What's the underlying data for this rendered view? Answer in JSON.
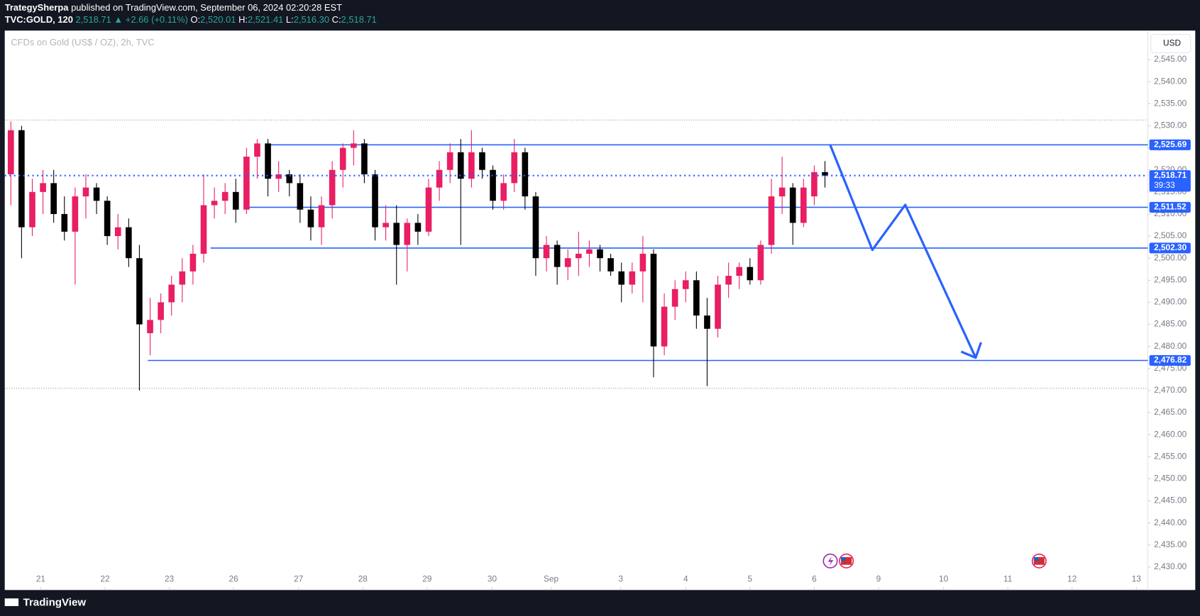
{
  "header": {
    "author": "TrategySherpa",
    "published": "published on TradingView.com, September 06, 2024 02:20:28 EST",
    "symbol": "TVC:GOLD, 120",
    "last": "2,518.71",
    "arrow": "▲",
    "change": "+2.66 (+0.11%)",
    "ohlc": [
      {
        "label": "O:",
        "value": "2,520.01"
      },
      {
        "label": "H:",
        "value": "2,521.41"
      },
      {
        "label": "L:",
        "value": "2,516.30"
      },
      {
        "label": "C:",
        "value": "2,518.71"
      }
    ]
  },
  "footer": {
    "brand": "TradingView"
  },
  "chart_data": {
    "type": "candlestick",
    "title": "CFDs on Gold (US$ / OZ), 2h, TVC",
    "currency": "USD",
    "up_color": "#e91e63",
    "down_color": "#000000",
    "grid": false,
    "ylim": [
      2427.5,
      2550
    ],
    "yticks": [
      {
        "value": 2545,
        "label": "2,545.00"
      },
      {
        "value": 2540,
        "label": "2,540.00"
      },
      {
        "value": 2535,
        "label": "2,535.00"
      },
      {
        "value": 2530,
        "label": "2,530.00"
      },
      {
        "value": 2525,
        "label": "2,525.00"
      },
      {
        "value": 2520,
        "label": "2,520.00"
      },
      {
        "value": 2515,
        "label": "2,515.00"
      },
      {
        "value": 2510,
        "label": "2,510.00"
      },
      {
        "value": 2505,
        "label": "2,505.00"
      },
      {
        "value": 2500,
        "label": "2,500.00"
      },
      {
        "value": 2495,
        "label": "2,495.00"
      },
      {
        "value": 2490,
        "label": "2,490.00"
      },
      {
        "value": 2485,
        "label": "2,485.00"
      },
      {
        "value": 2480,
        "label": "2,480.00"
      },
      {
        "value": 2475,
        "label": "2,475.00"
      },
      {
        "value": 2470,
        "label": "2,470.00"
      },
      {
        "value": 2465,
        "label": "2,465.00"
      },
      {
        "value": 2460,
        "label": "2,460.00"
      },
      {
        "value": 2455,
        "label": "2,455.00"
      },
      {
        "value": 2450,
        "label": "2,450.00"
      },
      {
        "value": 2445,
        "label": "2,445.00"
      },
      {
        "value": 2440,
        "label": "2,440.00"
      },
      {
        "value": 2435,
        "label": "2,435.00"
      },
      {
        "value": 2430,
        "label": "2,430.00"
      }
    ],
    "xlim": [
      -0.57,
      106.14
    ],
    "xticks": [
      {
        "value": 2.79,
        "label": "21"
      },
      {
        "value": 8.79,
        "label": "22"
      },
      {
        "value": 14.79,
        "label": "23"
      },
      {
        "value": 20.79,
        "label": "26"
      },
      {
        "value": 26.86,
        "label": "27"
      },
      {
        "value": 32.86,
        "label": "28"
      },
      {
        "value": 38.86,
        "label": "29"
      },
      {
        "value": 44.93,
        "label": "30"
      },
      {
        "value": 50.43,
        "label": "Sep"
      },
      {
        "value": 56.93,
        "label": "3"
      },
      {
        "value": 63,
        "label": "4"
      },
      {
        "value": 69,
        "label": "5"
      },
      {
        "value": 75,
        "label": "6"
      },
      {
        "value": 81,
        "label": "9"
      },
      {
        "value": 87.07,
        "label": "10"
      },
      {
        "value": 93.07,
        "label": "11"
      },
      {
        "value": 99.07,
        "label": "12"
      },
      {
        "value": 105.07,
        "label": "13"
      }
    ],
    "levels": [
      {
        "value": 2525.69,
        "label": "2,525.69"
      },
      {
        "value": 2511.52,
        "label": "2,511.52"
      },
      {
        "value": 2502.3,
        "label": "2,502.30"
      },
      {
        "value": 2476.82,
        "label": "2,476.82"
      }
    ],
    "current": {
      "value": 2518.71,
      "label": "2,518.71",
      "countdown": "39:33"
    },
    "range_lines": [
      2531.3,
      2470.5
    ],
    "candles": [
      [
        2519,
        2531,
        2512,
        2529
      ],
      [
        2529,
        2530,
        2500,
        2507
      ],
      [
        2507,
        2518,
        2505,
        2515
      ],
      [
        2515,
        2520,
        2510,
        2517
      ],
      [
        2517,
        2520,
        2508,
        2510
      ],
      [
        2510,
        2514,
        2504,
        2506
      ],
      [
        2506,
        2516,
        2494,
        2514
      ],
      [
        2514,
        2519,
        2509,
        2516
      ],
      [
        2516,
        2517,
        2510,
        2513
      ],
      [
        2513,
        2514,
        2503,
        2505
      ],
      [
        2505,
        2510,
        2502,
        2507
      ],
      [
        2507,
        2509,
        2498,
        2500
      ],
      [
        2500,
        2503,
        2470,
        2485
      ],
      [
        2483,
        2491,
        2478,
        2486
      ],
      [
        2486,
        2492,
        2483,
        2490
      ],
      [
        2490,
        2496,
        2487,
        2494
      ],
      [
        2494,
        2500,
        2490,
        2497
      ],
      [
        2497,
        2503,
        2494,
        2501
      ],
      [
        2501,
        2519,
        2499,
        2512
      ],
      [
        2512,
        2516,
        2509,
        2513
      ],
      [
        2513,
        2517,
        2510,
        2515
      ],
      [
        2515,
        2518,
        2508,
        2511
      ],
      [
        2511,
        2525,
        2510,
        2523
      ],
      [
        2523,
        2527,
        2518,
        2526
      ],
      [
        2526,
        2527,
        2514,
        2518
      ],
      [
        2518,
        2522,
        2515,
        2519
      ],
      [
        2519,
        2520,
        2514,
        2517
      ],
      [
        2517,
        2519,
        2508,
        2511
      ],
      [
        2511,
        2514,
        2504,
        2507
      ],
      [
        2507,
        2514,
        2503,
        2512
      ],
      [
        2512,
        2522,
        2509,
        2520
      ],
      [
        2520,
        2526,
        2516,
        2525
      ],
      [
        2525,
        2529,
        2521,
        2526
      ],
      [
        2526,
        2527,
        2517,
        2519
      ],
      [
        2519,
        2520,
        2504,
        2507
      ],
      [
        2507,
        2512,
        2504,
        2508
      ],
      [
        2508,
        2512,
        2494,
        2503
      ],
      [
        2503,
        2509,
        2497,
        2508
      ],
      [
        2508,
        2510,
        2503,
        2506
      ],
      [
        2506,
        2518,
        2505,
        2516
      ],
      [
        2516,
        2522,
        2513,
        2520
      ],
      [
        2520,
        2526,
        2517,
        2524
      ],
      [
        2524,
        2527,
        2503,
        2518
      ],
      [
        2518,
        2529,
        2516,
        2524
      ],
      [
        2524,
        2525,
        2518,
        2520
      ],
      [
        2520,
        2521,
        2511,
        2513
      ],
      [
        2513,
        2519,
        2511,
        2517
      ],
      [
        2517,
        2527,
        2515,
        2524
      ],
      [
        2524,
        2525,
        2511,
        2514
      ],
      [
        2514,
        2515,
        2496,
        2500
      ],
      [
        2500,
        2505,
        2497,
        2503
      ],
      [
        2503,
        2504,
        2494,
        2498
      ],
      [
        2498,
        2502,
        2495,
        2500
      ],
      [
        2500,
        2506,
        2496,
        2501
      ],
      [
        2501,
        2504,
        2498,
        2502
      ],
      [
        2502,
        2503,
        2497,
        2500
      ],
      [
        2500,
        2501,
        2496,
        2497
      ],
      [
        2497,
        2499,
        2490,
        2494
      ],
      [
        2494,
        2499,
        2492,
        2497
      ],
      [
        2497,
        2505,
        2490,
        2501
      ],
      [
        2501,
        2502,
        2473,
        2480
      ],
      [
        2480,
        2492,
        2478,
        2489
      ],
      [
        2489,
        2495,
        2486,
        2493
      ],
      [
        2493,
        2497,
        2490,
        2495
      ],
      [
        2495,
        2497,
        2484,
        2487
      ],
      [
        2487,
        2491,
        2471,
        2484
      ],
      [
        2484,
        2496,
        2482,
        2494
      ],
      [
        2494,
        2499,
        2491,
        2496
      ],
      [
        2496,
        2499,
        2493,
        2498
      ],
      [
        2498,
        2500,
        2494,
        2495
      ],
      [
        2495,
        2504,
        2494,
        2503
      ],
      [
        2503,
        2518,
        2501,
        2514
      ],
      [
        2514,
        2523,
        2510,
        2516
      ],
      [
        2516,
        2517,
        2503,
        2508
      ],
      [
        2508,
        2518,
        2507,
        2516
      ],
      [
        2514,
        2521,
        2512,
        2519.5
      ],
      [
        2519.5,
        2522,
        2516,
        2518.71
      ]
    ]
  }
}
